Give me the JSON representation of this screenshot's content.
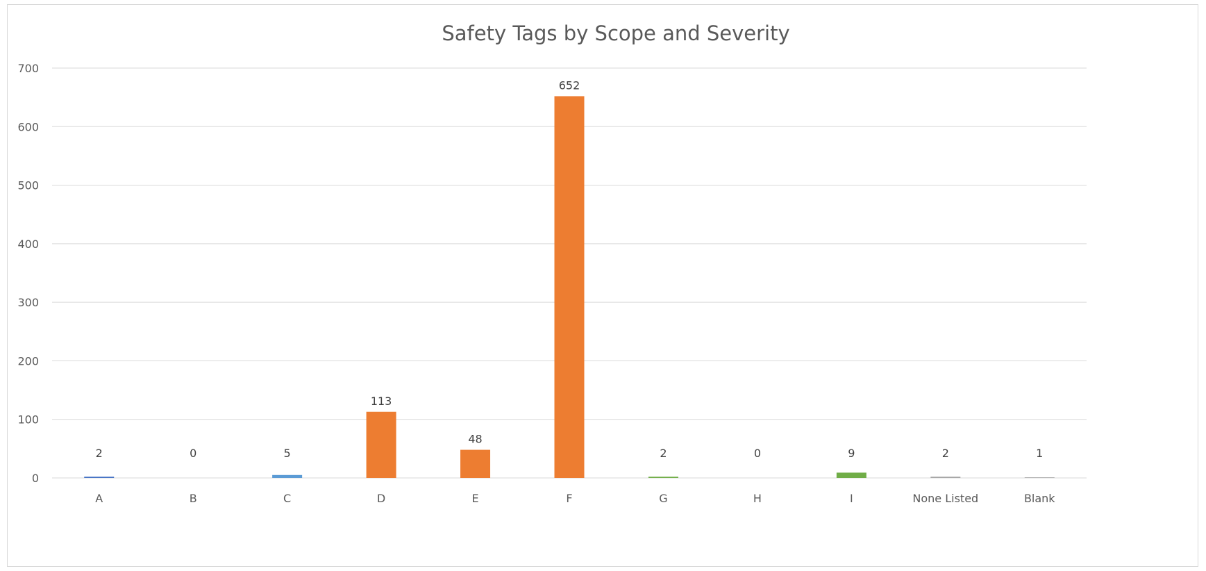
{
  "chart_data": {
    "type": "bar",
    "title": "Safety Tags by Scope and Severity",
    "xlabel": "",
    "ylabel": "",
    "ylim": [
      0,
      700
    ],
    "yticks": [
      0,
      100,
      200,
      300,
      400,
      500,
      600,
      700
    ],
    "grid": true,
    "legend": "none",
    "categories": [
      "A",
      "B",
      "C",
      "D",
      "E",
      "F",
      "G",
      "H",
      "I",
      "None Listed",
      "Blank"
    ],
    "values": [
      2,
      0,
      5,
      113,
      48,
      652,
      2,
      0,
      9,
      2,
      1
    ],
    "bar_colors": [
      "#4472c4",
      "#4472c4",
      "#5b9bd5",
      "#ed7d31",
      "#ed7d31",
      "#ed7d31",
      "#70ad47",
      "#70ad47",
      "#70ad47",
      "#a5a5a5",
      "#a5a5a5"
    ],
    "data_labels": [
      "2",
      "0",
      "5",
      "113",
      "48",
      "652",
      "2",
      "0",
      "9",
      "2",
      "1"
    ]
  }
}
